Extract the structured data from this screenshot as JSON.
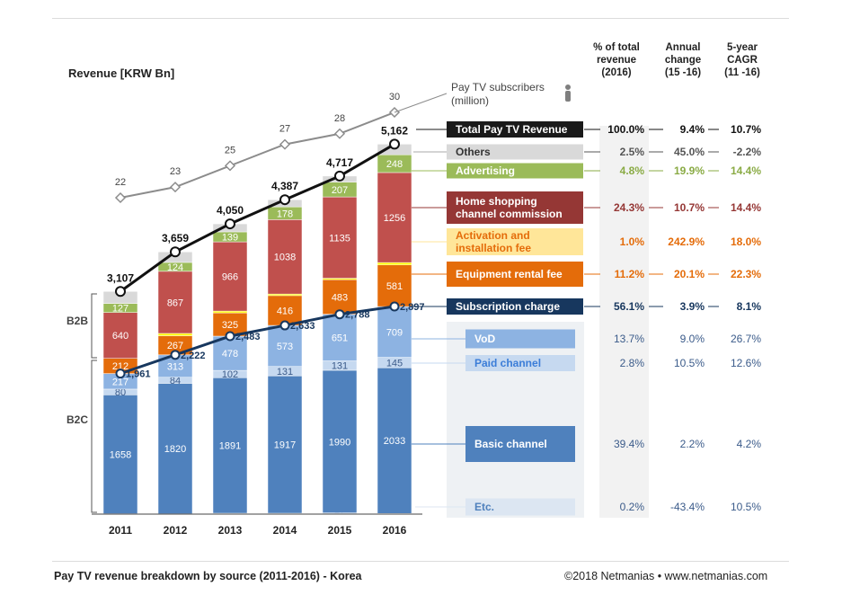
{
  "chart_data": {
    "type": "bar",
    "title": "Revenue [KRW Bn]",
    "footer_title": "Pay TV revenue breakdown by source (2011-2016) -  Korea",
    "copyright": "©2018 Netmanias • www.netmanias.com",
    "categories": [
      "2011",
      "2012",
      "2013",
      "2014",
      "2015",
      "2016"
    ],
    "ylim": [
      0,
      5300
    ],
    "stacked": true,
    "series": [
      {
        "name": "Etc.",
        "color": "#dce6f2",
        "values": [
          6,
          5,
          12,
          12,
          17,
          9
        ]
      },
      {
        "name": "Basic channel",
        "color": "#4f81bd",
        "values": [
          1658,
          1820,
          1891,
          1917,
          1990,
          2033
        ]
      },
      {
        "name": "Paid channel",
        "color": "#c6d9f0",
        "values": [
          80,
          84,
          102,
          131,
          131,
          145
        ]
      },
      {
        "name": "VoD",
        "color": "#8db3e2",
        "values": [
          217,
          313,
          478,
          573,
          651,
          709
        ]
      },
      {
        "name": "Equipment rental fee",
        "color": "#e46c0a",
        "values": [
          212,
          267,
          325,
          416,
          483,
          581
        ]
      },
      {
        "name": "Activation and installation fee",
        "color": "#ffff00",
        "values": [
          null,
          null,
          null,
          null,
          null,
          null
        ]
      },
      {
        "name": "Home shopping channel commission",
        "color": "#c0504d",
        "values": [
          640,
          867,
          966,
          1038,
          1135,
          1256
        ]
      },
      {
        "name": "Advertising",
        "color": "#9bbb59",
        "values": [
          127,
          124,
          139,
          178,
          207,
          248
        ]
      },
      {
        "name": "Others",
        "color": "#d9d9d9",
        "values": [
          null,
          null,
          null,
          null,
          null,
          null
        ]
      }
    ],
    "totals": [
      3107,
      3659,
      4050,
      4387,
      4717,
      5162
    ],
    "subscription_line": {
      "name": "Subscription charge",
      "values": [
        1961,
        2222,
        2483,
        2633,
        2788,
        2897
      ]
    },
    "subscribers_line": {
      "name": "Pay TV subscribers\n(million)",
      "values": [
        22,
        23,
        25,
        27,
        28,
        30
      ]
    },
    "groups": [
      "B2B",
      "B2C"
    ],
    "table": {
      "headers": [
        "% of total\nrevenue\n(2016)",
        "Annual\nchange\n(15 -16)",
        "5-year\nCAGR\n(11 -16)"
      ],
      "rows": [
        {
          "label": "Total Pay TV Revenue",
          "bg": "#1a1a1a",
          "fg": "#ffffff",
          "color": "#111111",
          "bold": true,
          "dashes": true,
          "pct": "100.0%",
          "annual": "9.4%",
          "cagr": "10.7%"
        },
        {
          "label": "Others",
          "bg": "#d9d9d9",
          "fg": "#333333",
          "color": "#555555",
          "bold": true,
          "dashes": true,
          "pct": "2.5%",
          "annual": "45.0%",
          "cagr": "-2.2%"
        },
        {
          "label": "Advertising",
          "bg": "#9bbb59",
          "fg": "#ffffff",
          "color": "#8aab45",
          "bold": true,
          "dashes": true,
          "pct": "4.8%",
          "annual": "19.9%",
          "cagr": "14.4%"
        },
        {
          "label": "Home shopping\nchannel commission",
          "bg": "#953735",
          "fg": "#ffffff",
          "color": "#953735",
          "bold": true,
          "dashes": true,
          "pct": "24.3%",
          "annual": "10.7%",
          "cagr": "14.4%"
        },
        {
          "label": "Activation and\ninstallation fee",
          "bg": "#ffe699",
          "fg": "#e46c0a",
          "color": "#e46c0a",
          "bold": true,
          "dashes": false,
          "pct": "1.0%",
          "annual": "242.9%",
          "cagr": "18.0%"
        },
        {
          "label": "Equipment rental fee",
          "bg": "#e46c0a",
          "fg": "#ffffff",
          "color": "#e46c0a",
          "bold": true,
          "dashes": true,
          "pct": "11.2%",
          "annual": "20.1%",
          "cagr": "22.3%"
        },
        {
          "label": "Subscription charge",
          "bg": "#17375e",
          "fg": "#ffffff",
          "color": "#17375e",
          "bold": true,
          "dashes": true,
          "pct": "56.1%",
          "annual": "3.9%",
          "cagr": "8.1%"
        },
        {
          "label": "VoD",
          "bg": "#8db3e2",
          "fg": "#ffffff",
          "color": "#3b5b8a",
          "bold": false,
          "dashes": false,
          "pct": "13.7%",
          "annual": "9.0%",
          "cagr": "26.7%"
        },
        {
          "label": "Paid channel",
          "bg": "#c6d9f0",
          "fg": "#3b7dd8",
          "color": "#3b5b8a",
          "bold": false,
          "dashes": false,
          "pct": "2.8%",
          "annual": "10.5%",
          "cagr": "12.6%"
        },
        {
          "label": "Basic channel",
          "bg": "#4f81bd",
          "fg": "#ffffff",
          "color": "#3b5b8a",
          "bold": false,
          "dashes": false,
          "pct": "39.4%",
          "annual": "2.2%",
          "cagr": "4.2%"
        },
        {
          "label": "Etc.",
          "bg": "#dce6f2",
          "fg": "#4f81bd",
          "color": "#3b5b8a",
          "bold": false,
          "dashes": false,
          "pct": "0.2%",
          "annual": "-43.4%",
          "cagr": "10.5%"
        }
      ]
    }
  },
  "icons": {
    "person": "person-icon"
  }
}
